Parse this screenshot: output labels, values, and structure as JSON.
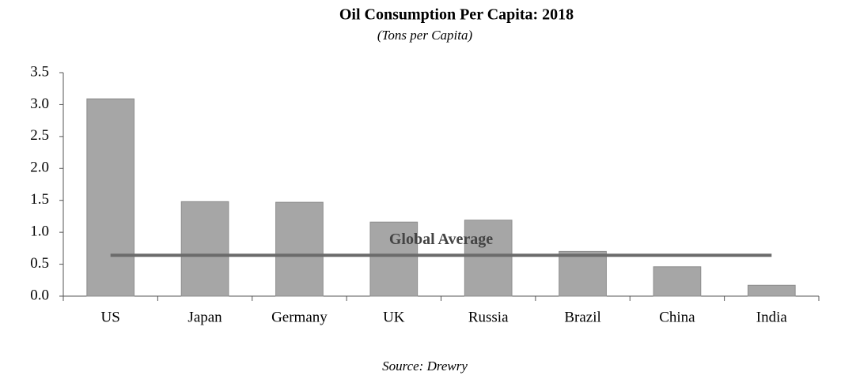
{
  "chart_data": {
    "type": "bar",
    "title": "Oil Consumption Per Capita: 2018",
    "subtitle": "(Tons per Capita)",
    "categories": [
      "US",
      "Japan",
      "Germany",
      "UK",
      "Russia",
      "Brazil",
      "China",
      "India"
    ],
    "values": [
      3.09,
      1.48,
      1.47,
      1.16,
      1.19,
      0.7,
      0.46,
      0.17
    ],
    "color": "#a6a6a6",
    "ylim": [
      0,
      3.5
    ],
    "yticks": [
      {
        "value": 0,
        "label": "0.0"
      },
      0.5,
      {
        "value": 1,
        "label": "1.0"
      },
      1.5,
      {
        "value": 2,
        "label": "2.0"
      },
      2.5,
      {
        "value": 3,
        "label": "3.0"
      },
      3.5
    ],
    "grid": false,
    "reference_line": {
      "label": "Global Average",
      "value": 0.64,
      "color": "#6b6b6b"
    },
    "source": "Source: Drewry"
  }
}
